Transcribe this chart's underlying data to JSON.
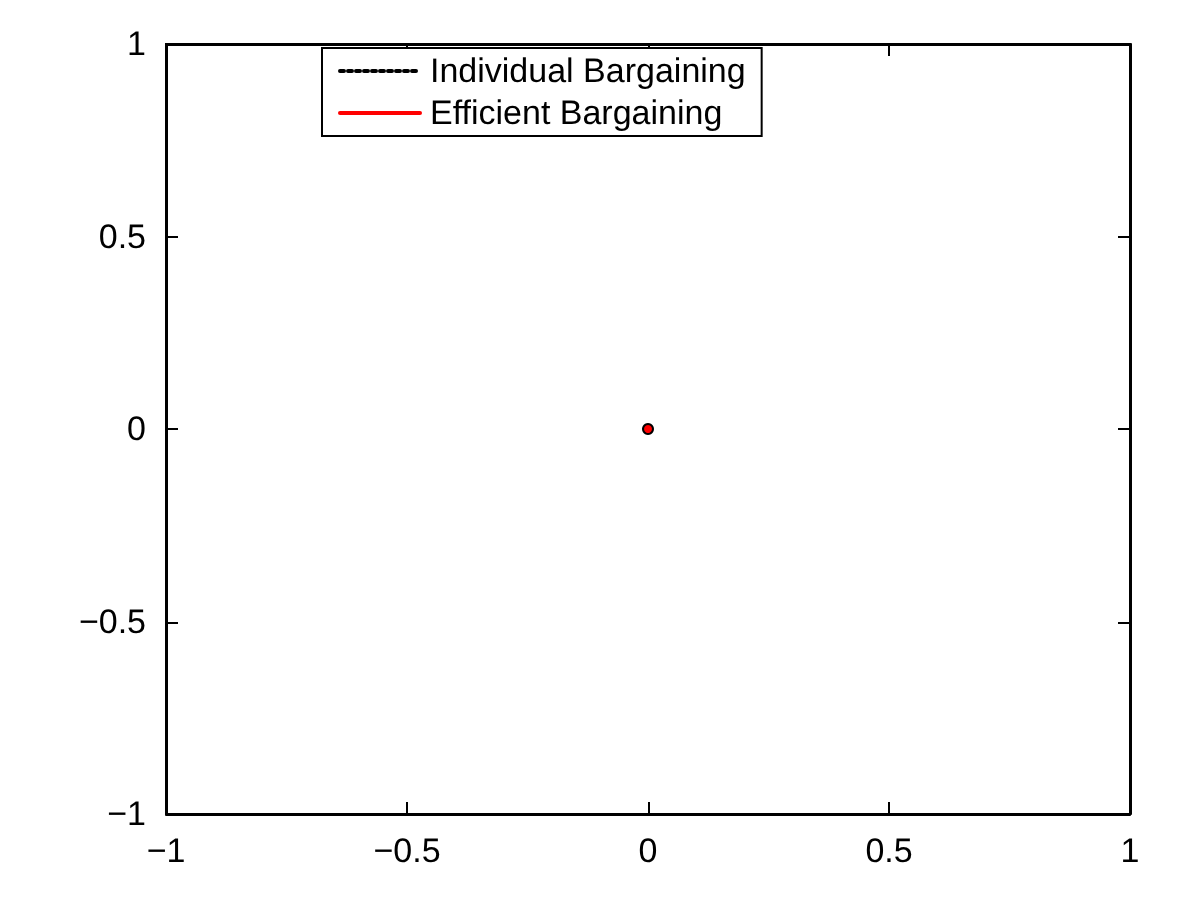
{
  "chart_data": {
    "type": "line",
    "x": [
      0
    ],
    "series": [
      {
        "name": "Individual Bargaining",
        "color": "#000000",
        "values": [
          0
        ],
        "line_style": "dotted"
      },
      {
        "name": "Efficient Bargaining",
        "color": "#ff0000",
        "values": [
          0
        ],
        "line_style": "solid"
      }
    ],
    "xlim": [
      -1,
      1
    ],
    "xticks": [
      -1,
      -0.5,
      0,
      0.5,
      1
    ],
    "ylim": [
      -1,
      1
    ],
    "yticks": [
      -1,
      -0.5,
      0,
      0.5,
      1
    ],
    "grid": false,
    "legend": "top",
    "marker": "circle"
  }
}
